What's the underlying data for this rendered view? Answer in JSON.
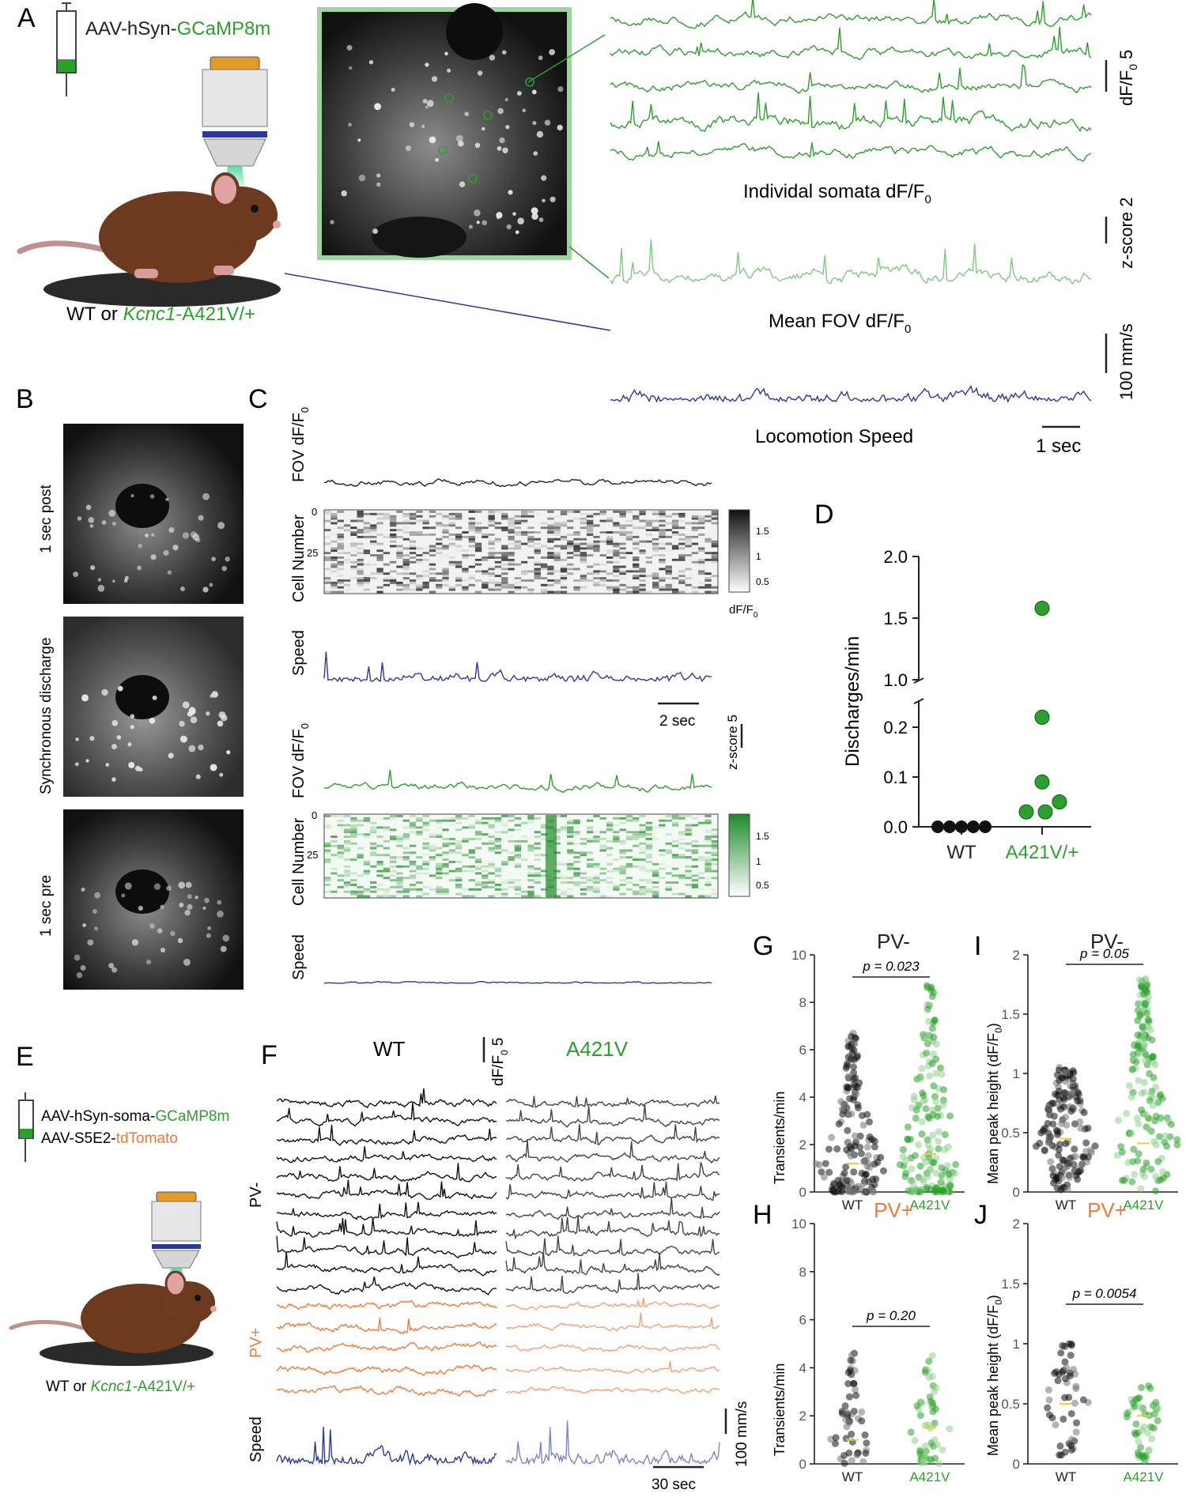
{
  "panel_letters": {
    "A": "A",
    "B": "B",
    "C": "C",
    "D": "D",
    "E": "E",
    "F": "F",
    "G": "G",
    "H": "H",
    "I": "I",
    "J": "J"
  },
  "colors": {
    "green": "#2ca02c",
    "light_green": "#7fc97f",
    "dark_green": "#1e7d1e",
    "navy": "#2b3a9a",
    "orange": "#f07a3c",
    "black": "#222222",
    "grey": "#666666",
    "yellow": "#e8d03a"
  },
  "panel_a": {
    "virus_prefix": "AAV-hSyn-",
    "virus_indicator": "GCaMP8m",
    "genotype_prefix": "WT or ",
    "genotype_gene": "Kcnc1",
    "genotype_suffix": "-A421V/+",
    "somata_label": "Individal somata dF/F",
    "somata_sub": "0",
    "mean_label": "Mean FOV dF/F",
    "mean_sub": "0",
    "speed_label": "Locomotion Speed",
    "scale_dff": "dF/F",
    "scale_dff_sub": "0",
    "scale_dff_value": "5",
    "scale_z": "z-score 2",
    "scale_speed": "100 mm/s",
    "scale_time": "1 sec"
  },
  "panel_b": {
    "labels": [
      "1 sec post",
      "Synchronous discharge",
      "1 sec pre"
    ]
  },
  "panel_c": {
    "fov_label": "FOV dF/F",
    "fov_sub": "0",
    "cell_label": "Cell Number",
    "speed_label": "Speed",
    "tick_0": "0",
    "tick_25": "25",
    "cbar_ticks": [
      "1.5",
      "1",
      "0.5"
    ],
    "cbar_label": "dF/F",
    "cbar_sub": "0",
    "scale_time": "2 sec",
    "scale_z": "z-score 5"
  },
  "panel_d": {
    "ylabel": "Discharges/min",
    "yticks": [
      "2.0",
      "1.5",
      "1.0",
      "0.2",
      "0.1",
      "0.0"
    ],
    "categories": [
      "WT",
      "A421V/+"
    ]
  },
  "panel_e": {
    "virus1_prefix": "AAV-hSyn-soma-",
    "virus1_indicator": "GCaMP8m",
    "virus2_prefix": "AAV-S5E2-",
    "virus2_indicator": "tdTomato",
    "genotype_prefix": "WT or ",
    "genotype_gene": "Kcnc1",
    "genotype_suffix": "-A421V/+"
  },
  "panel_f": {
    "wt_title": "WT",
    "mut_title": "A421V",
    "pv_minus": "PV-",
    "pv_plus": "PV+",
    "speed": "Speed",
    "scale_dff": "dF/F",
    "scale_dff_sub": "0",
    "scale_dff_value": "5",
    "scale_speed": "100 mm/s",
    "scale_time": "30 sec"
  },
  "panel_g": {
    "title": "PV-",
    "ylabel": "Transients/min",
    "yticks": [
      "10",
      "8",
      "6",
      "4",
      "2",
      "0"
    ],
    "pvalue": "p = 0.023",
    "categories": [
      "WT",
      "A421V"
    ]
  },
  "panel_h": {
    "title": "PV+",
    "ylabel": "Transients/min",
    "yticks": [
      "10",
      "8",
      "6",
      "4",
      "2",
      "0"
    ],
    "pvalue": "p = 0.20",
    "categories": [
      "WT",
      "A421V"
    ]
  },
  "panel_i": {
    "title": "PV-",
    "ylabel": "Mean peak height",
    "yunit": "(dF/F",
    "yunit_sub": "0",
    "yunit_close": ")",
    "yticks": [
      "2",
      "1.5",
      "1",
      "0.5",
      "0"
    ],
    "pvalue": "p = 0.05",
    "categories": [
      "WT",
      "A421V"
    ]
  },
  "panel_j": {
    "title": "PV+",
    "ylabel": "Mean peak height",
    "yunit": "(dF/F",
    "yunit_sub": "0",
    "yunit_close": ")",
    "yticks": [
      "2",
      "1.5",
      "1",
      "0.5",
      "0"
    ],
    "pvalue": "p = 0.0054",
    "categories": [
      "WT",
      "A421V"
    ]
  },
  "chart_data": [
    {
      "type": "scatter",
      "panel": "D",
      "ylabel": "Discharges/min",
      "categories": [
        "WT",
        "A421V/+"
      ],
      "series": [
        {
          "name": "WT",
          "values": [
            0,
            0,
            0,
            0,
            0
          ]
        },
        {
          "name": "A421V/+",
          "values": [
            1.58,
            0.22,
            0.09,
            0.05,
            0.03,
            0.03
          ]
        }
      ],
      "ylim": [
        0,
        2.0
      ],
      "broken_axis": [
        0.25,
        1.0
      ]
    },
    {
      "type": "scatter",
      "panel": "G",
      "title": "PV-",
      "ylabel": "Transients/min",
      "categories": [
        "WT",
        "A421V"
      ],
      "ylim": [
        0,
        10
      ],
      "summary": {
        "WT_mean": 1.2,
        "A421V_mean": 1.6,
        "WT_max": 6.7,
        "A421V_max": 8.7
      }
    },
    {
      "type": "scatter",
      "panel": "H",
      "title": "PV+",
      "ylabel": "Transients/min",
      "categories": [
        "WT",
        "A421V"
      ],
      "ylim": [
        0,
        10
      ],
      "summary": {
        "WT_mean": 1.0,
        "A421V_mean": 1.5,
        "WT_max": 4.6,
        "A421V_max": 4.5
      }
    },
    {
      "type": "scatter",
      "panel": "I",
      "title": "PV-",
      "ylabel": "Mean peak height",
      "categories": [
        "WT",
        "A421V"
      ],
      "ylim": [
        0,
        2
      ],
      "summary": {
        "WT_mean": 0.45,
        "A421V_mean": 0.41,
        "WT_max": 1.05,
        "A421V_max": 1.8
      }
    },
    {
      "type": "scatter",
      "panel": "J",
      "title": "PV+",
      "ylabel": "Mean peak height",
      "categories": [
        "WT",
        "A421V"
      ],
      "ylim": [
        0,
        2
      ],
      "summary": {
        "WT_mean": 0.5,
        "A421V_mean": 0.4,
        "WT_max": 1.0,
        "A421V_max": 0.65
      }
    }
  ]
}
